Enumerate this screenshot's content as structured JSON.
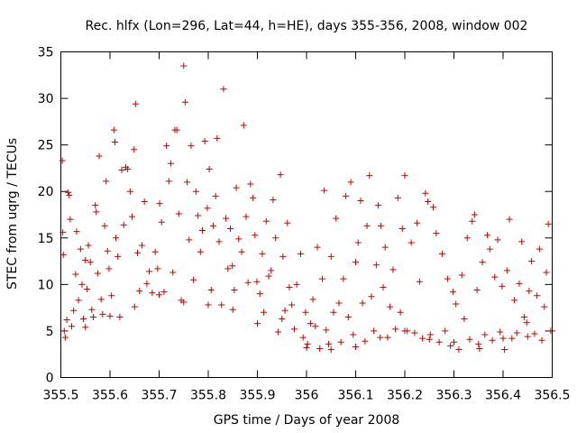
{
  "chart_data": {
    "type": "scatter",
    "title": "Rec. hlfx (Lon=296, Lat=44, h=HE), days 355-356, 2008, window 002",
    "xlabel": "GPS time / Days of year 2008",
    "ylabel": "STEC from uqrg / TECUs",
    "xlim": [
      355.5,
      356.5
    ],
    "ylim": [
      0,
      35
    ],
    "xticks": [
      355.5,
      355.6,
      355.7,
      355.8,
      355.9,
      356.0,
      356.1,
      356.2,
      356.3,
      356.4,
      356.5
    ],
    "xtick_labels": [
      "355.5",
      "355.6",
      "355.7",
      "355.8",
      "355.9",
      "356",
      "356.1",
      "356.2",
      "356.3",
      "356.4",
      "356.5"
    ],
    "yticks": [
      0,
      5,
      10,
      15,
      20,
      25,
      30,
      35
    ],
    "ytick_labels": [
      "0",
      "5",
      "10",
      "15",
      "20",
      "25",
      "30",
      "35"
    ],
    "marker": "+",
    "color": "#cc0000",
    "grid": false,
    "series": [
      {
        "name": "STEC",
        "points": [
          [
            355.503,
            23.3
          ],
          [
            355.504,
            15.6
          ],
          [
            355.505,
            13.2
          ],
          [
            355.507,
            5.0
          ],
          [
            355.509,
            4.3
          ],
          [
            355.512,
            6.2
          ],
          [
            355.515,
            19.9
          ],
          [
            355.517,
            19.6
          ],
          [
            355.519,
            17.0
          ],
          [
            355.522,
            5.5
          ],
          [
            355.526,
            7.2
          ],
          [
            355.53,
            11.1
          ],
          [
            355.532,
            15.7
          ],
          [
            355.536,
            8.3
          ],
          [
            355.54,
            13.8
          ],
          [
            355.543,
            10.0
          ],
          [
            355.546,
            6.3
          ],
          [
            355.55,
            12.6
          ],
          [
            355.553,
            9.5
          ],
          [
            355.556,
            14.2
          ],
          [
            355.56,
            12.4
          ],
          [
            355.563,
            7.3
          ],
          [
            355.566,
            6.5
          ],
          [
            355.57,
            18.5
          ],
          [
            355.572,
            17.8
          ],
          [
            355.575,
            11.2
          ],
          [
            355.578,
            23.8
          ],
          [
            355.582,
            8.4
          ],
          [
            355.585,
            6.8
          ],
          [
            355.589,
            16.3
          ],
          [
            355.592,
            21.1
          ],
          [
            355.595,
            13.6
          ],
          [
            355.598,
            11.7
          ],
          [
            355.603,
            8.8
          ],
          [
            355.608,
            26.6
          ],
          [
            355.61,
            25.3
          ],
          [
            355.612,
            15.0
          ],
          [
            355.616,
            13.0
          ],
          [
            355.62,
            6.5
          ],
          [
            355.624,
            22.3
          ],
          [
            355.628,
            16.4
          ],
          [
            355.632,
            22.6
          ],
          [
            355.636,
            22.4
          ],
          [
            355.641,
            20.0
          ],
          [
            355.645,
            17.3
          ],
          [
            355.649,
            24.5
          ],
          [
            355.652,
            29.4
          ],
          [
            355.656,
            13.4
          ],
          [
            355.66,
            9.3
          ],
          [
            355.665,
            14.2
          ],
          [
            355.67,
            18.9
          ],
          [
            355.675,
            10.1
          ],
          [
            355.68,
            11.4
          ],
          [
            355.686,
            9.1
          ],
          [
            355.692,
            13.5
          ],
          [
            355.697,
            11.7
          ],
          [
            355.701,
            18.7
          ],
          [
            355.705,
            16.7
          ],
          [
            355.71,
            9.2
          ],
          [
            355.715,
            24.9
          ],
          [
            355.72,
            21.1
          ],
          [
            355.724,
            23.0
          ],
          [
            355.728,
            11.3
          ],
          [
            355.732,
            26.6
          ],
          [
            355.736,
            26.6
          ],
          [
            355.74,
            17.6
          ],
          [
            355.745,
            8.3
          ],
          [
            355.75,
            33.5
          ],
          [
            355.753,
            29.6
          ],
          [
            355.757,
            21.0
          ],
          [
            355.761,
            14.8
          ],
          [
            355.765,
            24.9
          ],
          [
            355.77,
            10.5
          ],
          [
            355.775,
            20.0
          ],
          [
            355.779,
            17.4
          ],
          [
            355.784,
            13.5
          ],
          [
            355.788,
            15.8
          ],
          [
            355.793,
            25.4
          ],
          [
            355.798,
            18.2
          ],
          [
            355.802,
            22.4
          ],
          [
            355.806,
            9.4
          ],
          [
            355.81,
            16.3
          ],
          [
            355.815,
            19.5
          ],
          [
            355.818,
            25.7
          ],
          [
            355.822,
            14.6
          ],
          [
            355.827,
            7.8
          ],
          [
            355.831,
            31.0
          ],
          [
            355.836,
            17.1
          ],
          [
            355.84,
            11.7
          ],
          [
            355.845,
            16.0
          ],
          [
            355.849,
            12.0
          ],
          [
            355.853,
            9.4
          ],
          [
            355.857,
            20.4
          ],
          [
            355.862,
            14.9
          ],
          [
            355.868,
            13.5
          ],
          [
            355.872,
            27.1
          ],
          [
            355.877,
            17.3
          ],
          [
            355.881,
            10.2
          ],
          [
            355.886,
            20.8
          ],
          [
            355.891,
            19.3
          ],
          [
            355.895,
            15.3
          ],
          [
            355.899,
            10.3
          ],
          [
            355.905,
            9.0
          ],
          [
            355.91,
            13.3
          ],
          [
            355.913,
            7.0
          ],
          [
            355.918,
            16.8
          ],
          [
            355.923,
            10.9
          ],
          [
            355.928,
            11.5
          ],
          [
            355.932,
            19.1
          ],
          [
            355.937,
            15.0
          ],
          [
            355.942,
            4.9
          ],
          [
            355.947,
            21.8
          ],
          [
            355.952,
            13.0
          ],
          [
            355.956,
            7.2
          ],
          [
            355.961,
            16.6
          ],
          [
            355.965,
            9.7
          ],
          [
            355.97,
            7.8
          ],
          [
            355.975,
            5.2
          ],
          [
            355.98,
            10.0
          ],
          [
            355.988,
            13.3
          ],
          [
            355.993,
            4.3
          ],
          [
            355.998,
            7.0
          ],
          [
            356.002,
            3.6
          ],
          [
            356.008,
            5.8
          ],
          [
            356.013,
            8.4
          ],
          [
            356.018,
            5.5
          ],
          [
            356.022,
            14.0
          ],
          [
            356.027,
            3.1
          ],
          [
            356.032,
            10.6
          ],
          [
            356.036,
            20.1
          ],
          [
            356.04,
            5.1
          ],
          [
            356.045,
            3.6
          ],
          [
            356.05,
            13.0
          ],
          [
            356.055,
            7.0
          ],
          [
            356.06,
            17.1
          ],
          [
            356.066,
            8.0
          ],
          [
            356.07,
            3.8
          ],
          [
            356.075,
            10.6
          ],
          [
            356.08,
            19.5
          ],
          [
            356.085,
            6.5
          ],
          [
            356.09,
            21.0
          ],
          [
            356.095,
            4.6
          ],
          [
            356.1,
            12.4
          ],
          [
            356.105,
            14.5
          ],
          [
            356.11,
            19.0
          ],
          [
            356.114,
            8.0
          ],
          [
            356.119,
            3.9
          ],
          [
            356.123,
            16.3
          ],
          [
            356.128,
            21.7
          ],
          [
            356.132,
            8.7
          ],
          [
            356.137,
            5.0
          ],
          [
            356.142,
            12.1
          ],
          [
            356.146,
            18.5
          ],
          [
            356.151,
            16.3
          ],
          [
            356.156,
            9.7
          ],
          [
            356.16,
            14.0
          ],
          [
            356.165,
            4.3
          ],
          [
            356.17,
            7.6
          ],
          [
            356.176,
            11.6
          ],
          [
            356.181,
            5.2
          ],
          [
            356.186,
            19.3
          ],
          [
            356.191,
            7.0
          ],
          [
            356.195,
            16.0
          ],
          [
            356.2,
            21.7
          ],
          [
            356.205,
            5.0
          ],
          [
            356.213,
            14.5
          ],
          [
            356.22,
            4.8
          ],
          [
            356.225,
            16.6
          ],
          [
            356.23,
            10.3
          ],
          [
            356.236,
            4.2
          ],
          [
            356.242,
            19.8
          ],
          [
            356.247,
            18.9
          ],
          [
            356.252,
            4.6
          ],
          [
            356.258,
            18.3
          ],
          [
            356.264,
            15.5
          ],
          [
            356.27,
            3.8
          ],
          [
            356.276,
            13.3
          ],
          [
            356.282,
            5.0
          ],
          [
            356.287,
            10.6
          ],
          [
            356.293,
            3.4
          ],
          [
            356.298,
            9.2
          ],
          [
            356.304,
            7.9
          ],
          [
            356.31,
            3.0
          ],
          [
            356.316,
            11.0
          ],
          [
            356.321,
            6.3
          ],
          [
            356.327,
            15.0
          ],
          [
            356.332,
            4.1
          ],
          [
            356.337,
            16.8
          ],
          [
            356.342,
            17.5
          ],
          [
            356.347,
            9.4
          ],
          [
            356.352,
            3.1
          ],
          [
            356.358,
            12.4
          ],
          [
            356.363,
            4.6
          ],
          [
            356.368,
            15.3
          ],
          [
            356.373,
            13.8
          ],
          [
            356.378,
            4.0
          ],
          [
            356.383,
            10.8
          ],
          [
            356.389,
            14.8
          ],
          [
            356.394,
            4.9
          ],
          [
            356.398,
            9.8
          ],
          [
            356.403,
            3.0
          ],
          [
            356.408,
            11.5
          ],
          [
            356.413,
            17.0
          ],
          [
            356.418,
            4.2
          ],
          [
            356.423,
            8.3
          ],
          [
            356.428,
            4.8
          ],
          [
            356.433,
            10.1
          ],
          [
            356.438,
            14.6
          ],
          [
            356.443,
            6.5
          ],
          [
            356.448,
            5.9
          ],
          [
            356.453,
            9.3
          ],
          [
            356.458,
            12.5
          ],
          [
            356.464,
            4.7
          ],
          [
            356.469,
            8.8
          ],
          [
            356.474,
            13.8
          ],
          [
            356.479,
            4.0
          ],
          [
            356.484,
            7.6
          ],
          [
            356.488,
            11.3
          ],
          [
            356.492,
            16.5
          ],
          [
            356.497,
            5.0
          ],
          [
            355.6,
            6.6
          ],
          [
            355.7,
            8.9
          ],
          [
            355.8,
            7.8
          ],
          [
            355.9,
            5.8
          ],
          [
            356.0,
            3.2
          ],
          [
            356.1,
            3.3
          ],
          [
            356.2,
            5.0
          ],
          [
            356.3,
            3.8
          ],
          [
            356.4,
            4.2
          ],
          [
            356.5,
            5.0
          ],
          [
            355.55,
            5.4
          ],
          [
            355.65,
            7.6
          ],
          [
            355.75,
            8.1
          ],
          [
            355.85,
            7.3
          ],
          [
            355.95,
            6.3
          ],
          [
            356.05,
            3.0
          ],
          [
            356.15,
            4.3
          ],
          [
            356.25,
            4.1
          ],
          [
            356.35,
            3.6
          ],
          [
            356.45,
            4.4
          ]
        ]
      }
    ]
  }
}
